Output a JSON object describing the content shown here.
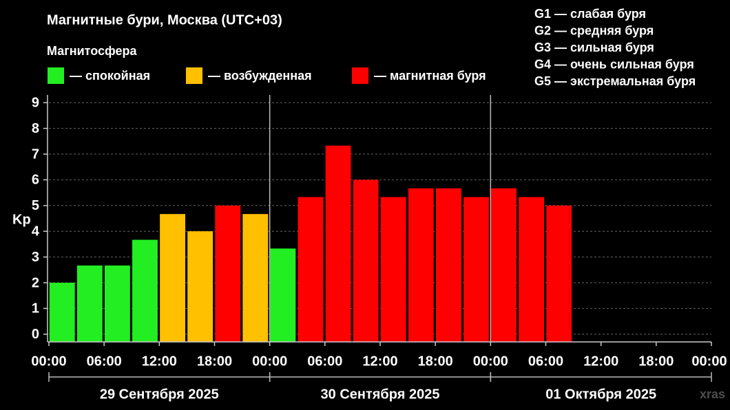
{
  "chart_data": {
    "type": "bar",
    "title": "Магнитные бури, Москва (UTC+03)",
    "legend_title": "Магнитосфера",
    "legend": [
      {
        "name": "— спокойная",
        "color": "#22ee22"
      },
      {
        "name": "— возбужденная",
        "color": "#ffc000"
      },
      {
        "name": "— магнитная буря",
        "color": "#ff0000"
      }
    ],
    "storm_scale": [
      "G1 — слабая буря",
      "G2 — средняя буря",
      "G3 — сильная буря",
      "G4 — очень сильная буря",
      "G5 — экстремальная буря"
    ],
    "ylabel": "Kp",
    "x": [
      0,
      3,
      6,
      9,
      12,
      15,
      18,
      21,
      24,
      27,
      30,
      33,
      36,
      39,
      42,
      45,
      48,
      51,
      54
    ],
    "values": [
      2,
      2.67,
      2.67,
      3.67,
      4.67,
      4,
      5,
      4.67,
      3.33,
      5.33,
      7.33,
      6,
      5.33,
      5.67,
      5.67,
      5.33,
      5.67,
      5.33,
      5
    ],
    "colors": [
      "#22ee22",
      "#22ee22",
      "#22ee22",
      "#22ee22",
      "#ffc000",
      "#ffc000",
      "#ff0000",
      "#ffc000",
      "#22ee22",
      "#ff0000",
      "#ff0000",
      "#ff0000",
      "#ff0000",
      "#ff0000",
      "#ff0000",
      "#ff0000",
      "#ff0000",
      "#ff0000",
      "#ff0000"
    ],
    "xlim": [
      0,
      72
    ],
    "xticks": [
      {
        "value": 0,
        "label": "00:00"
      },
      {
        "value": 6,
        "label": "06:00"
      },
      {
        "value": 12,
        "label": "12:00"
      },
      {
        "value": 18,
        "label": "18:00"
      },
      {
        "value": 24,
        "label": "00:00"
      },
      {
        "value": 30,
        "label": "06:00"
      },
      {
        "value": 36,
        "label": "12:00"
      },
      {
        "value": 42,
        "label": "18:00"
      },
      {
        "value": 48,
        "label": "00:00"
      },
      {
        "value": 54,
        "label": "06:00"
      },
      {
        "value": 60,
        "label": "12:00"
      },
      {
        "value": 66,
        "label": "18:00"
      },
      {
        "value": 72,
        "label": "00:00"
      }
    ],
    "ylim": [
      -0.3,
      9.3
    ],
    "yticks": [
      0,
      1,
      2,
      3,
      4,
      5,
      6,
      7,
      8,
      9
    ],
    "grid": true,
    "days": [
      {
        "label": "29 Сентября 2025",
        "start": 0,
        "end": 24
      },
      {
        "label": "30 Сентября 2025",
        "start": 24,
        "end": 48
      },
      {
        "label": "01 Октября 2025",
        "start": 48,
        "end": 72
      }
    ],
    "watermark": "xras"
  }
}
